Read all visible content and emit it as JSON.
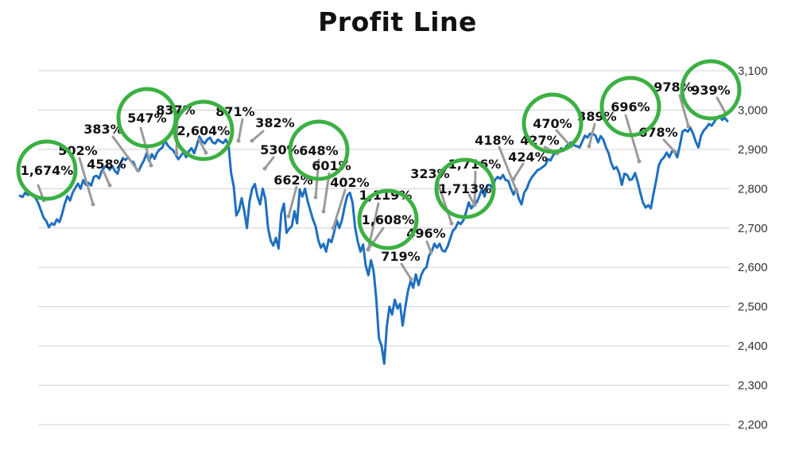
{
  "chart_data": {
    "type": "line",
    "title": "Profit Line",
    "xlabel": "",
    "ylabel": "",
    "ylim": [
      2200,
      3100
    ],
    "yticks": [
      2200,
      2300,
      2400,
      2500,
      2600,
      2700,
      2800,
      2900,
      3000,
      3100
    ],
    "ytick_labels": [
      "2,200",
      "2,300",
      "2,400",
      "2,500",
      "2,600",
      "2,700",
      "2,800",
      "2,900",
      "3,000",
      "3,100"
    ],
    "y_axis_side": "right",
    "grid": true,
    "legend": "none",
    "colors": {
      "line": "#1f6fbf",
      "grid": "#d0d0d0",
      "leader": "#9a9a9a",
      "circle": "#3cb043"
    },
    "series": [
      {
        "values": [
          2782,
          2779,
          2790,
          2784,
          2788,
          2781,
          2776,
          2763,
          2744,
          2726,
          2718,
          2702,
          2712,
          2708,
          2722,
          2715,
          2736,
          2762,
          2781,
          2770,
          2790,
          2802,
          2813,
          2800,
          2822,
          2810,
          2815,
          2808,
          2830,
          2833,
          2826,
          2845,
          2854,
          2860,
          2848,
          2858,
          2845,
          2838,
          2862,
          2878,
          2873,
          2880,
          2870,
          2868,
          2852,
          2845,
          2860,
          2872,
          2890,
          2870,
          2888,
          2876,
          2892,
          2900,
          2905,
          2923,
          2910,
          2903,
          2898,
          2887,
          2875,
          2884,
          2893,
          2880,
          2895,
          2903,
          2890,
          2910,
          2933,
          2921,
          2915,
          2925,
          2930,
          2918,
          2915,
          2925,
          2920,
          2916,
          2925,
          2912,
          2840,
          2806,
          2732,
          2745,
          2776,
          2742,
          2700,
          2768,
          2800,
          2812,
          2780,
          2760,
          2800,
          2774,
          2700,
          2668,
          2655,
          2675,
          2648,
          2738,
          2762,
          2688,
          2698,
          2705,
          2743,
          2712,
          2798,
          2780,
          2800,
          2768,
          2745,
          2722,
          2705,
          2670,
          2650,
          2660,
          2640,
          2671,
          2664,
          2689,
          2720,
          2700,
          2720,
          2755,
          2782,
          2790,
          2765,
          2700,
          2665,
          2640,
          2658,
          2605,
          2580,
          2618,
          2590,
          2520,
          2420,
          2400,
          2355,
          2450,
          2500,
          2480,
          2518,
          2495,
          2507,
          2452,
          2500,
          2540,
          2565,
          2548,
          2582,
          2555,
          2580,
          2594,
          2600,
          2630,
          2640,
          2660,
          2650,
          2660,
          2643,
          2640,
          2653,
          2673,
          2693,
          2700,
          2715,
          2710,
          2720,
          2740,
          2765,
          2750,
          2760,
          2765,
          2780,
          2800,
          2780,
          2808,
          2810,
          2800,
          2823,
          2830,
          2825,
          2835,
          2822,
          2820,
          2800,
          2785,
          2800,
          2775,
          2760,
          2790,
          2800,
          2818,
          2830,
          2838,
          2847,
          2850,
          2855,
          2860,
          2875,
          2872,
          2885,
          2893,
          2892,
          2903,
          2897,
          2908,
          2915,
          2918,
          2910,
          2908,
          2905,
          2920,
          2935,
          2930,
          2940,
          2940,
          2935,
          2918,
          2934,
          2925,
          2905,
          2890,
          2865,
          2850,
          2855,
          2840,
          2810,
          2838,
          2835,
          2822,
          2825,
          2840,
          2818,
          2790,
          2765,
          2752,
          2758,
          2750,
          2787,
          2820,
          2860,
          2873,
          2880,
          2892,
          2880,
          2895,
          2895,
          2880,
          2910,
          2945,
          2950,
          2945,
          2955,
          2940,
          2920,
          2905,
          2935,
          2948,
          2955,
          2965,
          2960,
          2970,
          2980,
          2985,
          2975,
          2980,
          2972
        ]
      }
    ],
    "annotations": [
      {
        "label": "1,674%",
        "circled": true
      },
      {
        "label": "502%",
        "circled": false
      },
      {
        "label": "458%",
        "circled": false
      },
      {
        "label": "383%",
        "circled": false
      },
      {
        "label": "547%",
        "circled": true
      },
      {
        "label": "837%",
        "circled": false
      },
      {
        "label": "2,604%",
        "circled": true
      },
      {
        "label": "871%",
        "circled": false
      },
      {
        "label": "382%",
        "circled": false
      },
      {
        "label": "530%",
        "circled": false
      },
      {
        "label": "648%",
        "circled": true
      },
      {
        "label": "662%",
        "circled": false
      },
      {
        "label": "601%",
        "circled": false
      },
      {
        "label": "402%",
        "circled": false
      },
      {
        "label": "1,119%",
        "circled": false
      },
      {
        "label": "1,608%",
        "circled": true
      },
      {
        "label": "719%",
        "circled": false
      },
      {
        "label": "496%",
        "circled": false
      },
      {
        "label": "323%",
        "circled": false
      },
      {
        "label": "1,716%",
        "circled": false
      },
      {
        "label": "1,713%",
        "circled": true
      },
      {
        "label": "418%",
        "circled": false
      },
      {
        "label": "424%",
        "circled": false
      },
      {
        "label": "427%",
        "circled": false
      },
      {
        "label": "470%",
        "circled": true
      },
      {
        "label": "389%",
        "circled": false
      },
      {
        "label": "696%",
        "circled": true
      },
      {
        "label": "678%",
        "circled": false
      },
      {
        "label": "978%",
        "circled": false
      },
      {
        "label": "939%",
        "circled": true
      }
    ]
  }
}
